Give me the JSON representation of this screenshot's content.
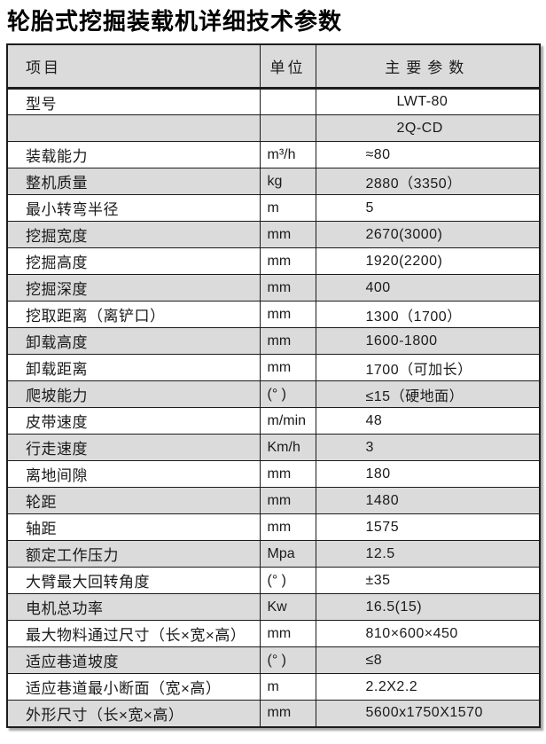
{
  "title": "轮胎式挖掘装载机详细技术参数",
  "table": {
    "headers": {
      "item": "项目",
      "unit": "单位",
      "value": "主要参数"
    },
    "rows": [
      {
        "label": "型号",
        "unit": "",
        "value": "LWT-80"
      },
      {
        "label": "",
        "unit": "",
        "value": "2Q-CD"
      },
      {
        "label": "装载能力",
        "unit": "m³/h",
        "value": "≈80"
      },
      {
        "label": "整机质量",
        "unit": "kg",
        "value": "2880（3350）"
      },
      {
        "label": "最小转弯半径",
        "unit": "m",
        "value": "5"
      },
      {
        "label": "挖掘宽度",
        "unit": "mm",
        "value": "2670(3000)"
      },
      {
        "label": "挖掘高度",
        "unit": "mm",
        "value": "1920(2200)"
      },
      {
        "label": "挖掘深度",
        "unit": "mm",
        "value": "400"
      },
      {
        "label": "挖取距离（离铲口）",
        "unit": "mm",
        "value": "1300（1700）"
      },
      {
        "label": "卸载高度",
        "unit": "mm",
        "value": "1600-1800"
      },
      {
        "label": "卸载距离",
        "unit": "mm",
        "value": "1700（可加长）"
      },
      {
        "label": "爬坡能力",
        "unit": "(° )",
        "value": "≤15（硬地面）"
      },
      {
        "label": "皮带速度",
        "unit": "m/min",
        "value": "48"
      },
      {
        "label": "行走速度",
        "unit": "Km/h",
        "value": "3"
      },
      {
        "label": "离地间隙",
        "unit": "mm",
        "value": "180"
      },
      {
        "label": "轮距",
        "unit": "mm",
        "value": "1480"
      },
      {
        "label": "轴距",
        "unit": "mm",
        "value": "1575"
      },
      {
        "label": "额定工作压力",
        "unit": "Mpa",
        "value": "12.5"
      },
      {
        "label": "大臂最大回转角度",
        "unit": "(° )",
        "value": "±35"
      },
      {
        "label": "电机总功率",
        "unit": "Kw",
        "value": "16.5(15)"
      },
      {
        "label": "最大物料通过尺寸（长×宽×高）",
        "unit": "mm",
        "value": "810×600×450"
      },
      {
        "label": "适应巷道坡度",
        "unit": "(° )",
        "value": "≤8"
      },
      {
        "label": "适应巷道最小断面（宽×高）",
        "unit": "m",
        "value": "2.2X2.2"
      },
      {
        "label": "外形尺寸（长×宽×高）",
        "unit": "mm",
        "value": "5600x1750X1570"
      }
    ]
  }
}
